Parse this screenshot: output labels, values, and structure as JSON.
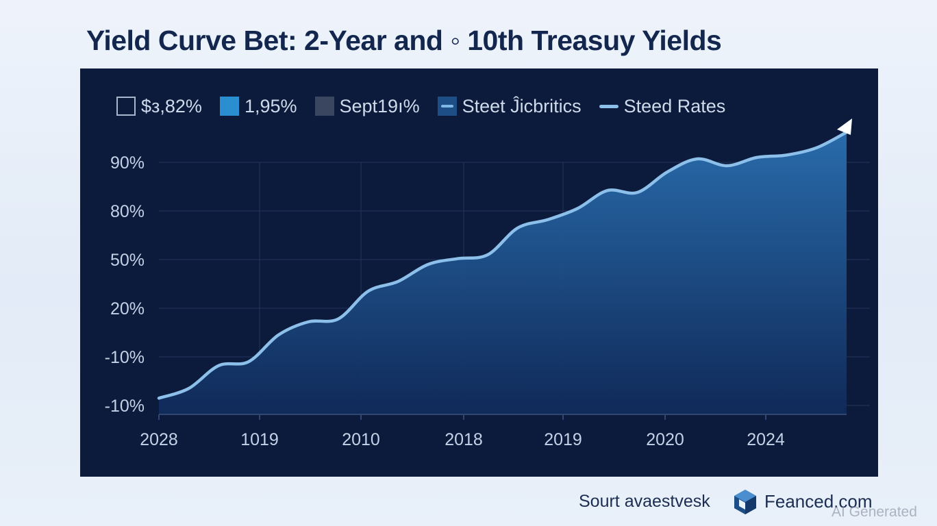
{
  "title": "Yield Curve Bet: 2-Year and ◦ 10th Treasuy Yields",
  "legend": [
    {
      "label": "$з,82%",
      "swatch": "outline"
    },
    {
      "label": "1,95%",
      "swatch": "fill-cyan"
    },
    {
      "label": "Sept19ı%",
      "swatch": "fill-gray"
    },
    {
      "label": "Steet Ĵicbritics",
      "swatch": "line-box"
    },
    {
      "label": "Steed Rates",
      "swatch": "line-only"
    }
  ],
  "colors": {
    "panel_bg": "#0c1b3b",
    "area_top": "#2a6fb0",
    "area_bottom": "#102a5a",
    "line": "#8cc0ea",
    "grid": "#24365e",
    "tick_text": "#c4d1e6"
  },
  "chart_data": {
    "type": "area",
    "title": "",
    "xlabel": "",
    "ylabel": "",
    "y_tick_labels": [
      "90%",
      "80%",
      "50%",
      "20%",
      "-10%",
      "-10%"
    ],
    "x_tick_labels": [
      "2028",
      "1019",
      "2010",
      "2018",
      "2019",
      "2020",
      "2024"
    ],
    "ylim_position": [
      0,
      5
    ],
    "note_axis": "y values expressed as position along the evenly spaced tick scale (0 = bottom tick, 5 = top tick)",
    "series": [
      {
        "x": [
          0,
          0.3,
          0.6,
          0.9,
          1.2,
          1.5,
          1.8,
          2.1,
          2.4,
          2.7,
          3.0,
          3.3,
          3.6,
          3.9,
          4.2,
          4.5,
          4.8,
          5.1,
          5.4,
          5.7,
          6.0,
          6.3,
          6.6,
          6.9
        ],
        "y": [
          0.15,
          0.35,
          0.82,
          0.9,
          1.45,
          1.72,
          1.78,
          2.35,
          2.55,
          2.9,
          3.02,
          3.1,
          3.65,
          3.82,
          4.05,
          4.42,
          4.38,
          4.8,
          5.07,
          4.93,
          5.1,
          5.15,
          5.3,
          5.62
        ]
      }
    ],
    "grid": true,
    "legend_position": "top"
  },
  "footer": {
    "source": "Sourt avaestvesk",
    "site": "Feanced.com",
    "watermark": "AI Generated"
  }
}
